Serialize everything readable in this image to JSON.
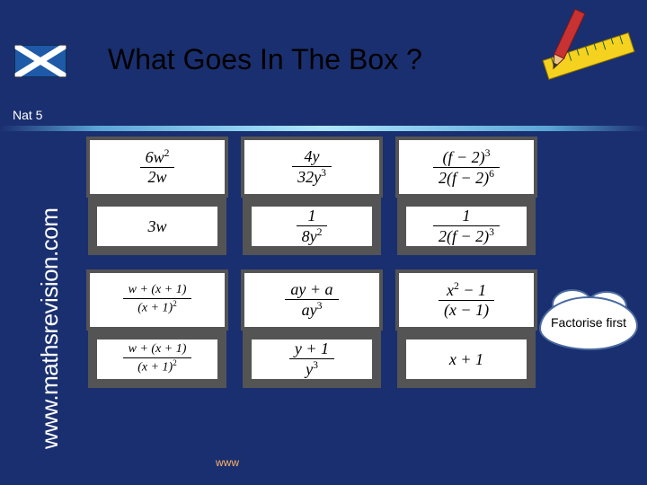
{
  "title": "What Goes In The Box ?",
  "level": "Nat 5",
  "sidebar": "www.mathsrevision.com",
  "hint": "Factorise first",
  "watermark": "www",
  "colors": {
    "background": "#1a2f6f",
    "title_text": "#000000",
    "cell_bg": "#ffffff",
    "cell_border": "#545454",
    "watermark": "#ffb366"
  },
  "flag": {
    "bg": "#1e5aa8",
    "cross": "#ffffff"
  },
  "pencil_ruler": {
    "ruler": "#f4d21f",
    "pencil": "#c83232",
    "marks": "#1a5a2a"
  },
  "grid": {
    "rows": [
      {
        "type": "question",
        "cells": [
          {
            "num": "6w<span class='sup'>2</span>",
            "den": "2w"
          },
          {
            "num": "4y",
            "den": "32y<span class='sup'>3</span>"
          },
          {
            "num": "(f − 2)<span class='sup'>3</span>",
            "den": "2(f − 2)<span class='sup'>6</span>"
          }
        ]
      },
      {
        "type": "answer",
        "cells": [
          {
            "plain": "3w"
          },
          {
            "num": "1",
            "den": "8y<span class='sup'>2</span>"
          },
          {
            "num": "1",
            "den": "2(f − 2)<span class='sup'>3</span>"
          }
        ]
      },
      {
        "type": "question",
        "cells": [
          {
            "num": "w + (x + 1)",
            "den": "(x + 1)<span class='sup'>2</span>"
          },
          {
            "num": "ay + a",
            "den": "ay<span class='sup'>3</span>"
          },
          {
            "num": "x<span class='sup'>2</span> − 1",
            "den": "(x − 1)"
          }
        ]
      },
      {
        "type": "answer",
        "cells": [
          {
            "num": "w + (x + 1)",
            "den": "(x + 1)<span class='sup'>2</span>"
          },
          {
            "num": "y + 1",
            "den": "y<span class='sup'>3</span>"
          },
          {
            "plain": "x + 1"
          }
        ]
      }
    ]
  }
}
